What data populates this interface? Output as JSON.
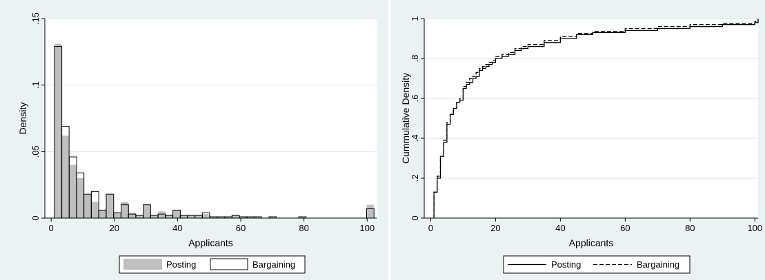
{
  "chart_data": [
    {
      "type": "bar",
      "xlabel": "Applicants",
      "ylabel": "Density",
      "xlim": [
        -2,
        103
      ],
      "ylim": [
        0,
        0.15
      ],
      "xticks": [
        0,
        20,
        40,
        60,
        80,
        100
      ],
      "xtick_labels": [
        "0",
        "20",
        "40",
        "60",
        "80",
        "100"
      ],
      "yticks": [
        0,
        0.05,
        0.1,
        0.15
      ],
      "ytick_labels": [
        "0",
        ".05",
        ".1",
        ".15"
      ],
      "grid": true,
      "legend_position": "bottom",
      "bin_width": 2.35,
      "x": [
        2.2,
        4.5,
        6.9,
        9.2,
        11.5,
        13.9,
        16.2,
        18.6,
        20.9,
        23.3,
        25.6,
        28.0,
        30.3,
        32.6,
        35.0,
        37.3,
        39.7,
        42.0,
        44.3,
        46.7,
        49.0,
        51.4,
        53.7,
        56.1,
        58.4,
        60.8,
        63.1,
        65.4,
        67.8,
        70.1,
        72.5,
        74.8,
        77.1,
        79.5,
        81.8,
        84.2,
        86.5,
        88.9,
        91.2,
        93.5,
        95.9,
        101.0
      ],
      "series": [
        {
          "name": "Posting",
          "style": "filled",
          "color": "#bfbfbf",
          "values": [
            0.131,
            0.062,
            0.04,
            0.03,
            0.018,
            0.012,
            0.006,
            0.018,
            0.004,
            0.012,
            0.004,
            0.002,
            0.01,
            0.002,
            0.005,
            0.002,
            0.006,
            0.002,
            0.002,
            0.002,
            0.003,
            0.001,
            0.001,
            0.001,
            0.002,
            0.001,
            0.001,
            0.001,
            0.0,
            0.001,
            0.0,
            0.0,
            0.0,
            0.001,
            0.0,
            0.0,
            0.0,
            0.0,
            0.0,
            0.0,
            0.0,
            0.01
          ]
        },
        {
          "name": "Bargaining",
          "style": "outline",
          "color": "#000000",
          "values": [
            0.129,
            0.069,
            0.046,
            0.034,
            0.018,
            0.02,
            0.006,
            0.018,
            0.004,
            0.01,
            0.003,
            0.002,
            0.01,
            0.002,
            0.003,
            0.002,
            0.006,
            0.002,
            0.002,
            0.002,
            0.004,
            0.001,
            0.001,
            0.001,
            0.002,
            0.001,
            0.001,
            0.001,
            0.0,
            0.001,
            0.0,
            0.0,
            0.0,
            0.001,
            0.0,
            0.0,
            0.0,
            0.0,
            0.0,
            0.0,
            0.0,
            0.007
          ]
        }
      ]
    },
    {
      "type": "line",
      "xlabel": "Applicants",
      "ylabel": "Cummulative Density",
      "xlim": [
        -2,
        101
      ],
      "ylim": [
        0,
        1.0
      ],
      "xticks": [
        0,
        20,
        40,
        60,
        80,
        100
      ],
      "xtick_labels": [
        "0",
        "20",
        "40",
        "60",
        "80",
        "100"
      ],
      "yticks": [
        0,
        0.2,
        0.4,
        0.6,
        0.8,
        1.0
      ],
      "ytick_labels": [
        "0",
        ".2",
        ".4",
        ".6",
        ".8",
        "1"
      ],
      "grid": true,
      "legend_position": "bottom",
      "step": true,
      "series": [
        {
          "name": "Posting",
          "dash": "solid",
          "x": [
            1,
            2,
            3,
            4,
            5,
            6,
            7,
            8,
            9,
            10,
            11,
            12,
            13,
            14,
            15,
            16,
            17,
            18,
            19,
            20,
            22,
            24,
            26,
            28,
            30,
            35,
            40,
            45,
            50,
            60,
            70,
            80,
            90,
            100,
            101
          ],
          "y": [
            0.13,
            0.2,
            0.31,
            0.38,
            0.47,
            0.52,
            0.55,
            0.58,
            0.59,
            0.65,
            0.67,
            0.68,
            0.7,
            0.71,
            0.74,
            0.75,
            0.76,
            0.77,
            0.78,
            0.8,
            0.81,
            0.82,
            0.84,
            0.85,
            0.86,
            0.88,
            0.9,
            0.92,
            0.93,
            0.94,
            0.95,
            0.96,
            0.97,
            0.98,
            1.0
          ]
        },
        {
          "name": "Bargaining",
          "dash": "dashed",
          "x": [
            1,
            2,
            3,
            4,
            5,
            6,
            7,
            8,
            9,
            10,
            11,
            12,
            13,
            14,
            15,
            16,
            17,
            18,
            19,
            20,
            22,
            24,
            26,
            28,
            30,
            35,
            40,
            45,
            50,
            60,
            70,
            80,
            90,
            100,
            101
          ],
          "y": [
            0.13,
            0.21,
            0.31,
            0.39,
            0.48,
            0.52,
            0.55,
            0.58,
            0.6,
            0.66,
            0.68,
            0.7,
            0.71,
            0.73,
            0.75,
            0.76,
            0.77,
            0.78,
            0.79,
            0.81,
            0.82,
            0.83,
            0.85,
            0.86,
            0.87,
            0.89,
            0.91,
            0.925,
            0.935,
            0.95,
            0.96,
            0.97,
            0.975,
            0.985,
            0.99
          ]
        }
      ]
    }
  ]
}
